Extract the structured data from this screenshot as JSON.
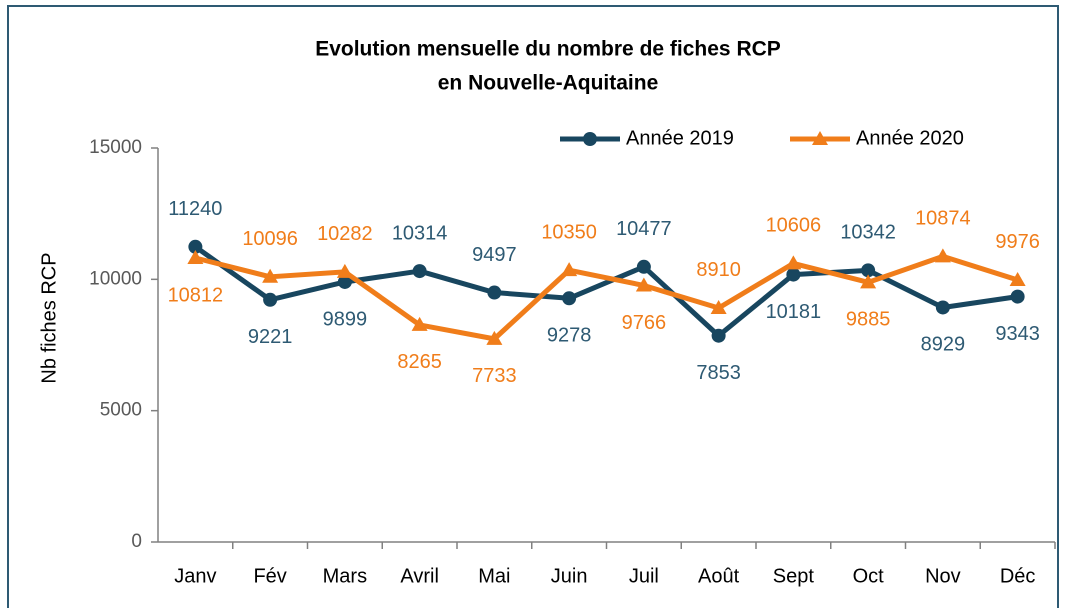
{
  "chart_data": {
    "type": "line",
    "title": [
      "Evolution mensuelle du nombre de fiches RCP",
      "en Nouvelle-Aquitaine"
    ],
    "y_label": "Nb fiches RCP",
    "categories": [
      "Janv",
      "Fév",
      "Mars",
      "Avril",
      "Mai",
      "Juin",
      "Juil",
      "Août",
      "Sept",
      "Oct",
      "Nov",
      "Déc"
    ],
    "series": [
      {
        "name": "Année 2019",
        "color": "#18465f",
        "marker": "circle",
        "values": [
          11240,
          9221,
          9899,
          10314,
          9497,
          9278,
          10477,
          7853,
          10181,
          10342,
          8929,
          9343
        ]
      },
      {
        "name": "Année 2020",
        "color": "#f07d1a",
        "marker": "triangle",
        "values": [
          10812,
          10096,
          10282,
          8265,
          7733,
          10350,
          9766,
          8910,
          10606,
          9885,
          10874,
          9976
        ]
      }
    ],
    "ylim": [
      0,
      15000
    ],
    "yticks": [
      0,
      5000,
      10000,
      15000
    ],
    "grid": false,
    "legend": "top-right"
  }
}
